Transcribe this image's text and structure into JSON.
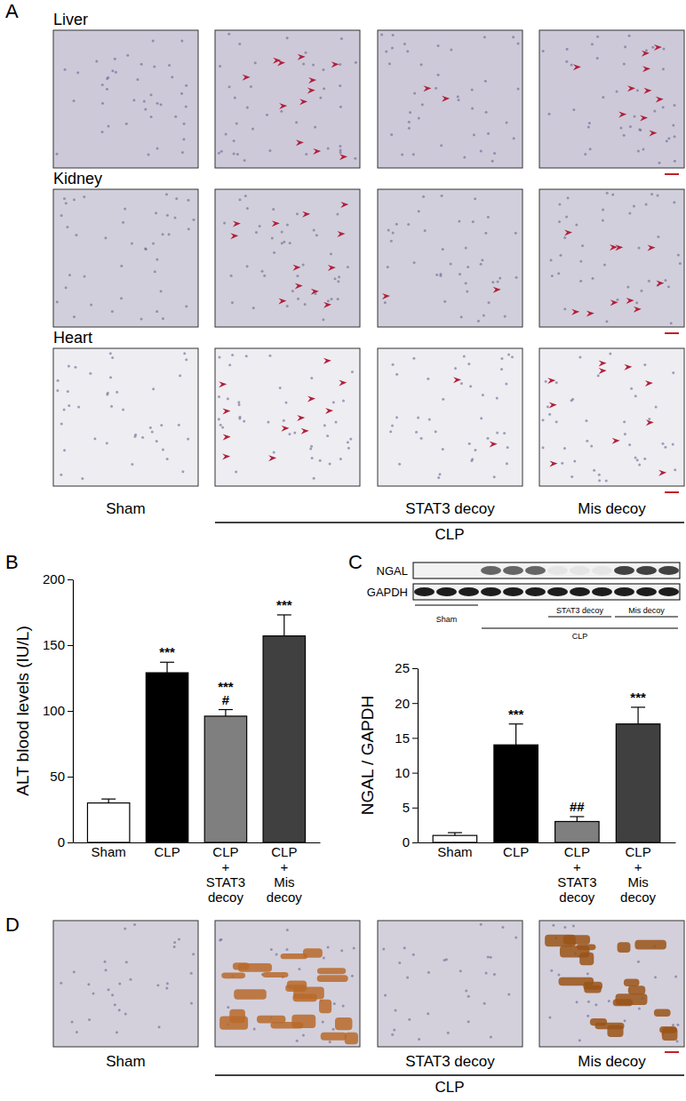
{
  "chart_data": [
    {
      "type": "bar",
      "categories": [
        "Sham",
        "CLP",
        "CLP + STAT3 decoy",
        "CLP + Mis decoy"
      ],
      "values": [
        30,
        129,
        96,
        157
      ],
      "errors": [
        3,
        8,
        5,
        16
      ],
      "colors": [
        "#ffffff",
        "#000000",
        "#7f7f7f",
        "#404040"
      ],
      "y_label": "ALT blood levels (IU/L)",
      "ylim": [
        0,
        200
      ],
      "yticks": [
        0,
        50,
        100,
        150,
        200
      ],
      "annotations": [
        [],
        [
          "***"
        ],
        [
          "***",
          "#"
        ],
        [
          "***"
        ]
      ]
    },
    {
      "type": "bar",
      "categories": [
        "Sham",
        "CLP",
        "CLP + STAT3 decoy",
        "CLP + Mis decoy"
      ],
      "values": [
        1,
        14,
        3,
        17
      ],
      "errors": [
        0.4,
        3,
        0.7,
        2.4
      ],
      "colors": [
        "#ffffff",
        "#000000",
        "#7f7f7f",
        "#404040"
      ],
      "y_label": "NGAL / GAPDH",
      "ylim": [
        0,
        25
      ],
      "yticks": [
        0,
        5,
        10,
        15,
        20,
        25
      ],
      "annotations": [
        [],
        [
          "***"
        ],
        [
          "##"
        ],
        [
          "***"
        ]
      ]
    }
  ],
  "figure": {
    "panel_labels": [
      "A",
      "B",
      "C",
      "D"
    ],
    "panel_a": {
      "rows": [
        "Liver",
        "Kidney",
        "Heart"
      ],
      "columns": [
        "Sham",
        "STAT3 decoy",
        "Mis decoy"
      ],
      "group": "CLP"
    },
    "panel_c_blot": {
      "bands": [
        "NGAL",
        "GAPDH"
      ],
      "lanes": [
        "Sham",
        "STAT3 decoy",
        "Mis decoy"
      ],
      "group": "CLP"
    },
    "panel_d": {
      "columns": [
        "Sham",
        "STAT3 decoy",
        "Mis decoy"
      ],
      "group": "CLP"
    }
  }
}
